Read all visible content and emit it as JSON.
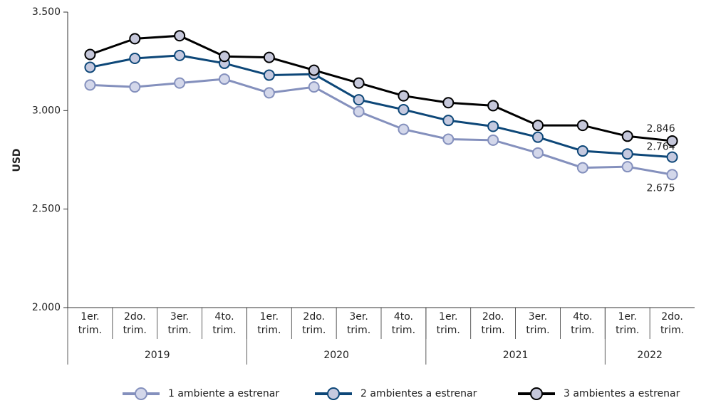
{
  "chart_data": {
    "type": "line",
    "y_label": "USD",
    "categories": [
      "1er. trim.",
      "2do. trim.",
      "3er. trim.",
      "4to. trim.",
      "1er. trim.",
      "2do. trim.",
      "3er. trim.",
      "4to. trim.",
      "1er. trim.",
      "2do. trim.",
      "3er. trim.",
      "4to. trim.",
      "1er. trim.",
      "2do. trim."
    ],
    "x_groups": [
      {
        "label": "2019",
        "size": 4
      },
      {
        "label": "2020",
        "size": 4
      },
      {
        "label": "2021",
        "size": 4
      },
      {
        "label": "2022",
        "size": 2
      }
    ],
    "ylim": [
      2000,
      3500
    ],
    "yticks": [
      {
        "value": 2000,
        "label": "2.000"
      },
      {
        "value": 2500,
        "label": "2.500"
      },
      {
        "value": 3000,
        "label": "3.000"
      },
      {
        "value": 3500,
        "label": "3.500"
      }
    ],
    "grid": false,
    "legend": "bottom",
    "series": [
      {
        "name": "1 ambiente a estrenar",
        "color": "#8490bd",
        "marker_fill": "#d3d7ea",
        "values": [
          3130,
          3120,
          3140,
          3160,
          3090,
          3120,
          2995,
          2905,
          2855,
          2850,
          2785,
          2710,
          2715,
          2675
        ],
        "value_labels": [
          null,
          null,
          null,
          null,
          null,
          null,
          null,
          null,
          null,
          null,
          null,
          null,
          null,
          "2.675"
        ]
      },
      {
        "name": "2 ambientes a estrenar",
        "color": "#0d4778",
        "marker_fill": "#c5c9df",
        "values": [
          3220,
          3265,
          3280,
          3240,
          3180,
          3185,
          3055,
          3005,
          2950,
          2920,
          2865,
          2795,
          2780,
          2764
        ],
        "value_labels": [
          null,
          null,
          null,
          null,
          null,
          null,
          null,
          null,
          null,
          null,
          null,
          null,
          null,
          "2.764"
        ]
      },
      {
        "name": "3 ambientes a estrenar",
        "color": "#000000",
        "marker_fill": "#c5c7da",
        "values": [
          3285,
          3365,
          3380,
          3275,
          3270,
          3205,
          3140,
          3075,
          3040,
          3025,
          2925,
          2925,
          2870,
          2846
        ],
        "value_labels": [
          null,
          null,
          null,
          null,
          null,
          null,
          null,
          null,
          null,
          null,
          null,
          null,
          null,
          "2.846"
        ]
      }
    ]
  }
}
